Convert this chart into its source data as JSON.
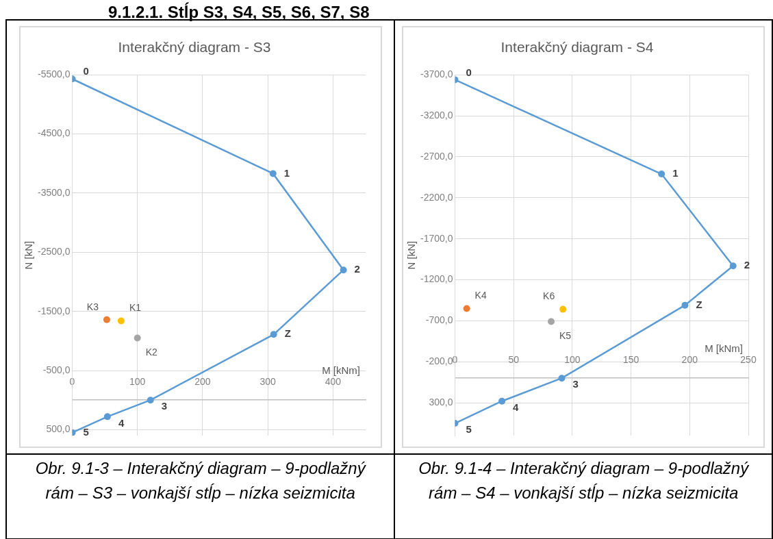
{
  "chart_data": [
    {
      "type": "line",
      "title": "Interakčný diagram - S3",
      "xlabel": "M [kNm]",
      "ylabel": "N [kN]",
      "xlim": [
        0,
        450
      ],
      "xticks": [
        0,
        100,
        200,
        300,
        400
      ],
      "ylim": [
        600,
        -5500
      ],
      "yticks": [
        {
          "value": -5500,
          "label": "-5500,0"
        },
        {
          "value": -4500,
          "label": "-4500,0"
        },
        {
          "value": -3500,
          "label": "-3500,0"
        },
        {
          "value": -2500,
          "label": "-2500,0"
        },
        {
          "value": -1500,
          "label": "-1500,0"
        },
        {
          "value": -500,
          "label": "-500,0"
        },
        {
          "value": 500,
          "label": "500,0"
        }
      ],
      "grid": true,
      "marker": "circle",
      "series": [
        {
          "type": "line",
          "color": "#5b9bd5",
          "x": [
            0,
            308,
            416,
            309,
            120,
            54,
            0
          ],
          "values": [
            -5430,
            -3830,
            -2200,
            -1110,
            0,
            280,
            550
          ]
        },
        {
          "type": "scatter",
          "name": "K1",
          "color": "#ffc000",
          "x": [
            75
          ],
          "values": [
            -1340
          ]
        },
        {
          "type": "scatter",
          "name": "K2",
          "color": "#a5a5a5",
          "x": [
            100
          ],
          "values": [
            -1050
          ]
        },
        {
          "type": "scatter",
          "name": "K3",
          "color": "#ed7d31",
          "x": [
            53
          ],
          "values": [
            -1360
          ]
        }
      ],
      "annotations": [
        "9.1.2.1.   Stĺp S3, S4, S5, S6, S7, S8",
        "Obr. 9.1-3   – Interakčný diagram – 9-podlažný rám – S3 – vonkajší stĺp – nízka seizmicita",
        {
          "text": "0",
          "x": 0,
          "y": -5430
        },
        {
          "text": "1",
          "x": 308,
          "y": -3830
        },
        {
          "text": "2",
          "x": 416,
          "y": -2200
        },
        {
          "text": "Z",
          "x": 309,
          "y": -1110
        },
        {
          "text": "3",
          "x": 120,
          "y": 0
        },
        {
          "text": "4",
          "x": 54,
          "y": 280
        },
        {
          "text": "5",
          "x": 0,
          "y": 550
        }
      ]
    },
    {
      "type": "line",
      "title": "Interakčný diagram - S4",
      "xlabel": "M [kNm]",
      "ylabel": "N [kN]",
      "xlim": [
        0,
        250
      ],
      "xticks": [
        0,
        50,
        100,
        150,
        200,
        250
      ],
      "ylim": [
        700,
        -3700
      ],
      "yticks": [
        {
          "value": -3700,
          "label": "-3700,0"
        },
        {
          "value": -3200,
          "label": "-3200,0"
        },
        {
          "value": -2700,
          "label": "-2700,0"
        },
        {
          "value": -2200,
          "label": "-2200,0"
        },
        {
          "value": -1700,
          "label": "-1700,0"
        },
        {
          "value": -1200,
          "label": "-1200,0"
        },
        {
          "value": -700,
          "label": "-700,0"
        },
        {
          "value": -200,
          "label": "-200,0"
        },
        {
          "value": 300,
          "label": "300,0"
        }
      ],
      "grid": true,
      "marker": "circle",
      "series": [
        {
          "type": "line",
          "color": "#5b9bd5",
          "x": [
            0,
            176,
            237,
            196,
            91,
            40,
            0
          ],
          "values": [
            -3640,
            -2490,
            -1370,
            -890,
            0,
            280,
            550
          ]
        },
        {
          "type": "scatter",
          "name": "K4",
          "color": "#ed7d31",
          "x": [
            10
          ],
          "values": [
            -850
          ]
        },
        {
          "type": "scatter",
          "name": "K5",
          "color": "#a5a5a5",
          "x": [
            82
          ],
          "values": [
            -690
          ]
        },
        {
          "type": "scatter",
          "name": "K6",
          "color": "#ffc000",
          "x": [
            92
          ],
          "values": [
            -840
          ]
        }
      ],
      "annotations": [
        "Obr. 9.1-4  – Interakčný diagram – 9-podlažný rám – S4 – vonkajší stĺp – nízka seizmicita",
        {
          "text": "0",
          "x": 0,
          "y": -3640
        },
        {
          "text": "1",
          "x": 176,
          "y": -2490
        },
        {
          "text": "2",
          "x": 237,
          "y": -1370
        },
        {
          "text": "Z",
          "x": 196,
          "y": -890
        },
        {
          "text": "3",
          "x": 91,
          "y": 0
        },
        {
          "text": "4",
          "x": 40,
          "y": 280
        },
        {
          "text": "5",
          "x": 0,
          "y": 550
        }
      ]
    }
  ]
}
